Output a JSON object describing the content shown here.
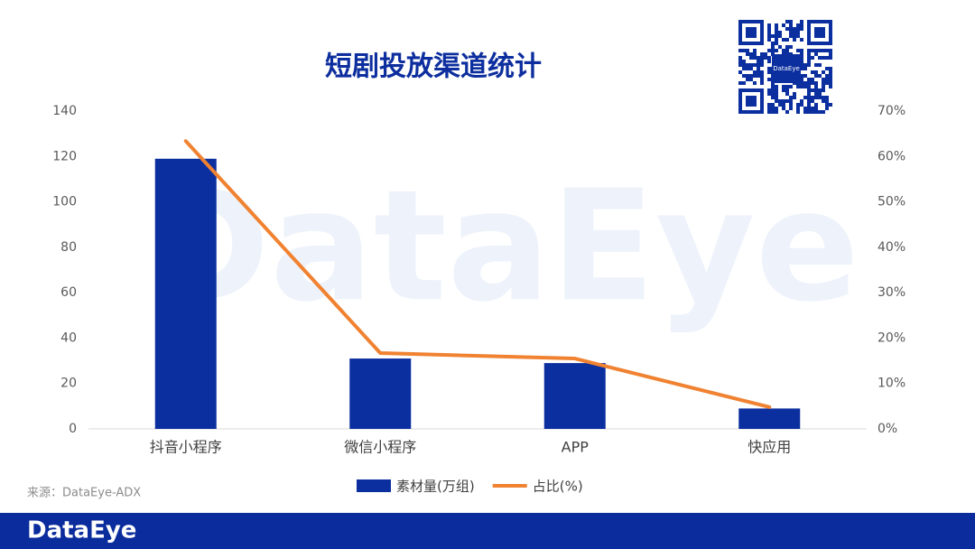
{
  "chart_data": {
    "type": "bar_line",
    "title": "短剧投放渠道统计",
    "categories": [
      "抖音小程序",
      "微信小程序",
      "APP",
      "快应用"
    ],
    "series": [
      {
        "name": "素材量(万组)",
        "type": "bar",
        "color": "#0b2f9f",
        "values": [
          119,
          31,
          29,
          9
        ]
      },
      {
        "name": "占比(%)",
        "type": "line",
        "axis": "y2",
        "color": "#f08231",
        "values": [
          63.4,
          16.7,
          15.5,
          4.8
        ]
      }
    ],
    "ylim": [
      0,
      140
    ],
    "yticks": [
      0,
      20,
      40,
      60,
      80,
      100,
      120,
      140
    ],
    "y2lim": [
      0,
      70
    ],
    "y2ticks": [
      {
        "value": 0,
        "label": "0%"
      },
      {
        "value": 10,
        "label": "10%"
      },
      {
        "value": 20,
        "label": "20%"
      },
      {
        "value": 30,
        "label": "30%"
      },
      {
        "value": 40,
        "label": "40%"
      },
      {
        "value": 50,
        "label": "50%"
      },
      {
        "value": 60,
        "label": "60%"
      },
      {
        "value": 70,
        "label": "70%"
      }
    ],
    "grid": false,
    "legend": "bottom"
  },
  "source": "来源：DataEye-ADX",
  "watermark": "DataEye",
  "qr_label": "DataEye",
  "footer": "DataEye"
}
